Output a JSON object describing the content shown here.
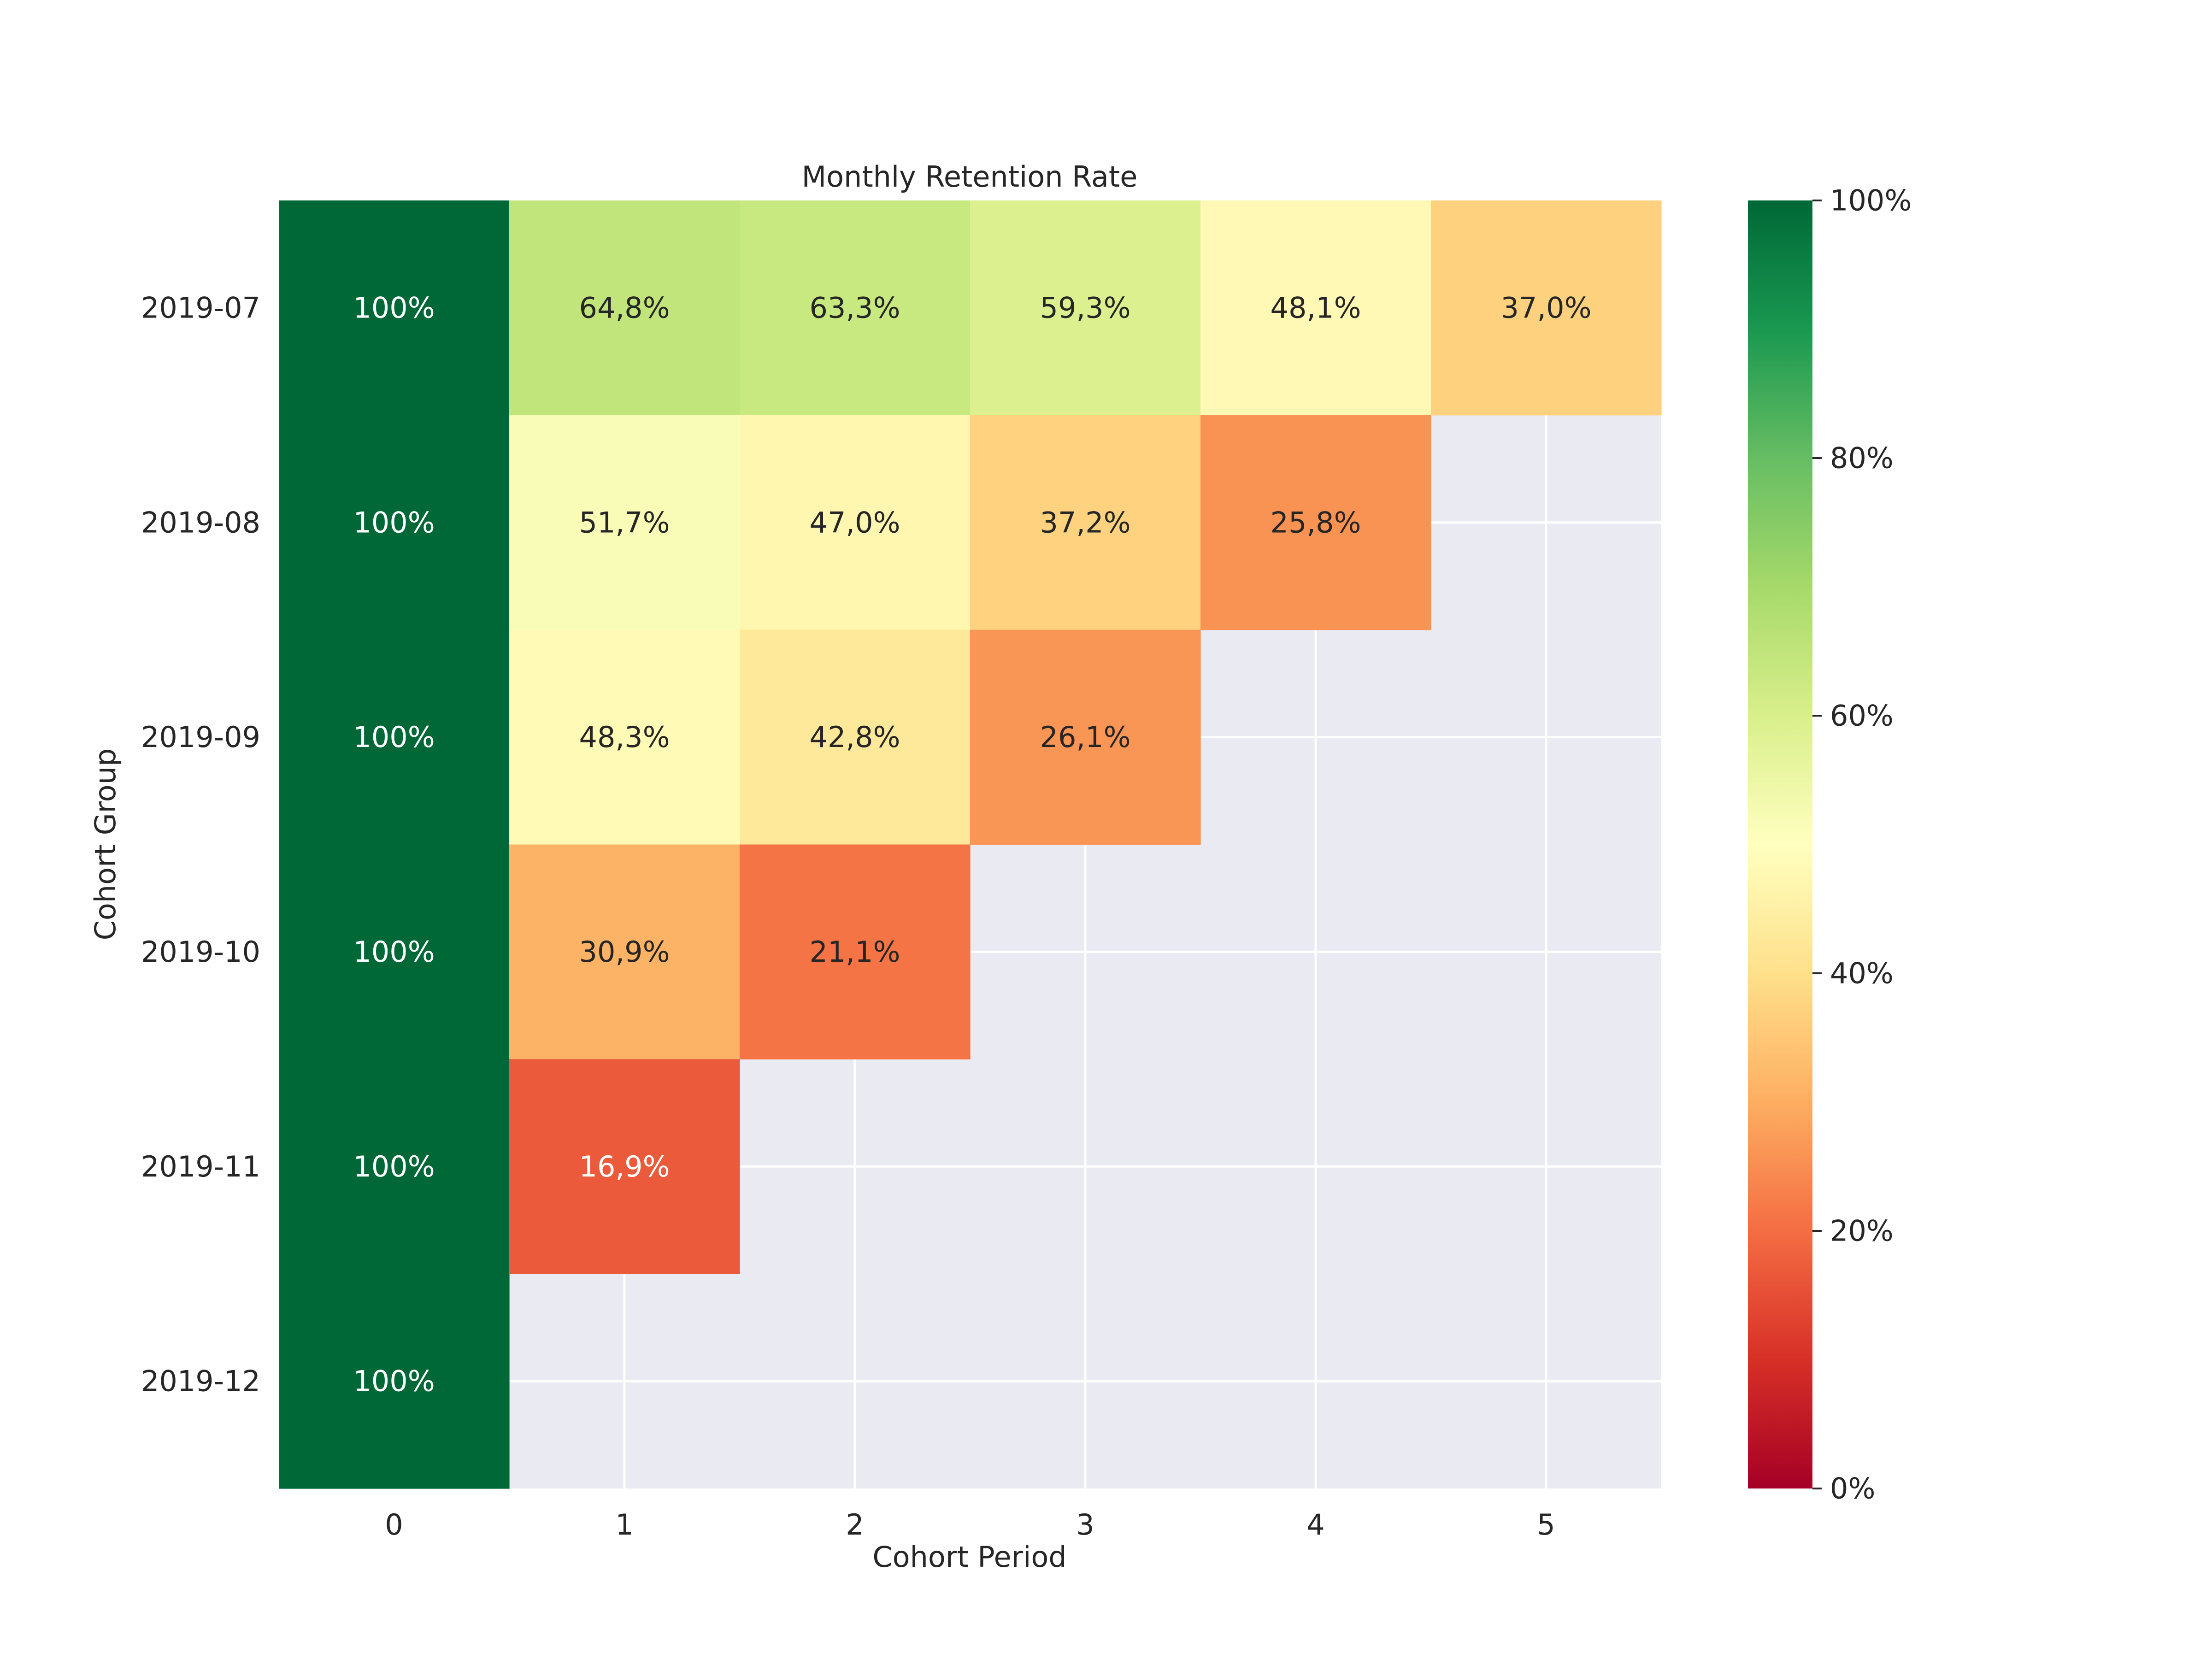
{
  "chart_data": {
    "type": "heatmap",
    "title": "Monthly Retention Rate",
    "xlabel": "Cohort Period",
    "ylabel": "Cohort Group",
    "x": [
      "0",
      "1",
      "2",
      "3",
      "4",
      "5"
    ],
    "y": [
      "2019-07",
      "2019-08",
      "2019-09",
      "2019-10",
      "2019-11",
      "2019-12"
    ],
    "values": [
      [
        1.0,
        0.648,
        0.633,
        0.593,
        0.481,
        0.37
      ],
      [
        1.0,
        0.517,
        0.47,
        0.372,
        0.258,
        null
      ],
      [
        1.0,
        0.483,
        0.428,
        0.261,
        null,
        null
      ],
      [
        1.0,
        0.309,
        0.211,
        null,
        null,
        null
      ],
      [
        1.0,
        0.169,
        null,
        null,
        null,
        null
      ],
      [
        1.0,
        null,
        null,
        null,
        null,
        null
      ]
    ],
    "cell_labels": [
      [
        "100%",
        "64,8%",
        "63,3%",
        "59,3%",
        "48,1%",
        "37,0%"
      ],
      [
        "100%",
        "51,7%",
        "47,0%",
        "37,2%",
        "25,8%",
        null
      ],
      [
        "100%",
        "48,3%",
        "42,8%",
        "26,1%",
        null,
        null
      ],
      [
        "100%",
        "30,9%",
        "21,1%",
        null,
        null,
        null
      ],
      [
        "100%",
        "16,9%",
        null,
        null,
        null,
        null
      ],
      [
        "100%",
        null,
        null,
        null,
        null,
        null
      ]
    ],
    "colormap": "RdYlGn",
    "vmin": 0,
    "vmax": 1,
    "colorbar_ticks": [
      "0%",
      "20%",
      "40%",
      "60%",
      "80%",
      "100%"
    ],
    "colorbar_values": [
      0,
      0.2,
      0.4,
      0.6,
      0.8,
      1.0
    ],
    "background_color": "#eaeaf2",
    "grid": true
  }
}
